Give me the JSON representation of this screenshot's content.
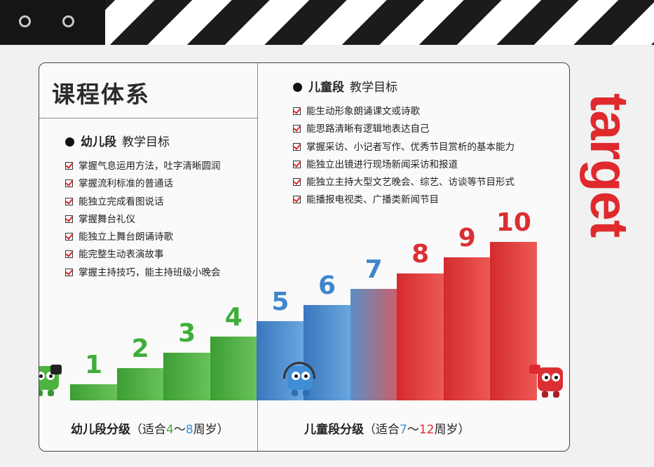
{
  "title": "课程体系",
  "word_art": "target",
  "kids": {
    "heading": "幼儿段",
    "heading_sub": "教学目标",
    "goals": [
      "掌握气息运用方法，吐字清晰圆润",
      "掌握流利标准的普通话",
      "能独立完成看图说话",
      "掌握舞台礼仪",
      "能独立上舞台朗诵诗歌",
      "能完整生动表演故事",
      "掌握主持技巧，能主持班级小晚会"
    ],
    "level_label": "幼儿段分级",
    "age_prefix": "（适合",
    "age_from": "4",
    "age_sep": "～",
    "age_to": "8",
    "age_suffix": "周岁）"
  },
  "children": {
    "heading": "儿童段",
    "heading_sub": "教学目标",
    "goals": [
      "能生动形象朗诵课文或诗歌",
      "能思路清晰有逻辑地表达自己",
      "掌握采访、小记者写作、优秀节目赏析的基本能力",
      "能独立出镜进行现场新闻采访和报道",
      "能独立主持大型文艺晚会、综艺、访谈等节目形式",
      "能播报电视类、广播类新闻节目"
    ],
    "level_label": "儿童段分级",
    "age_prefix": "（适合",
    "age_from": "7",
    "age_sep": "～",
    "age_to": "12",
    "age_suffix": "周岁）"
  },
  "levels": [
    1,
    2,
    3,
    4,
    5,
    6,
    7,
    8,
    9,
    10
  ],
  "colors": {
    "green": "#3fae3a",
    "blue": "#3f86cf",
    "red": "#dc2f33",
    "age_green": "#4aa83c",
    "age_blue": "#3c8fd6",
    "age_red": "#dd2a2e"
  },
  "icons": {
    "check": "checkbox-check-icon",
    "camera_mascot": "green-mascot-camera-icon",
    "headphone_mascot": "blue-mascot-headphones-icon",
    "tv_mascot": "red-mascot-tv-icon"
  }
}
